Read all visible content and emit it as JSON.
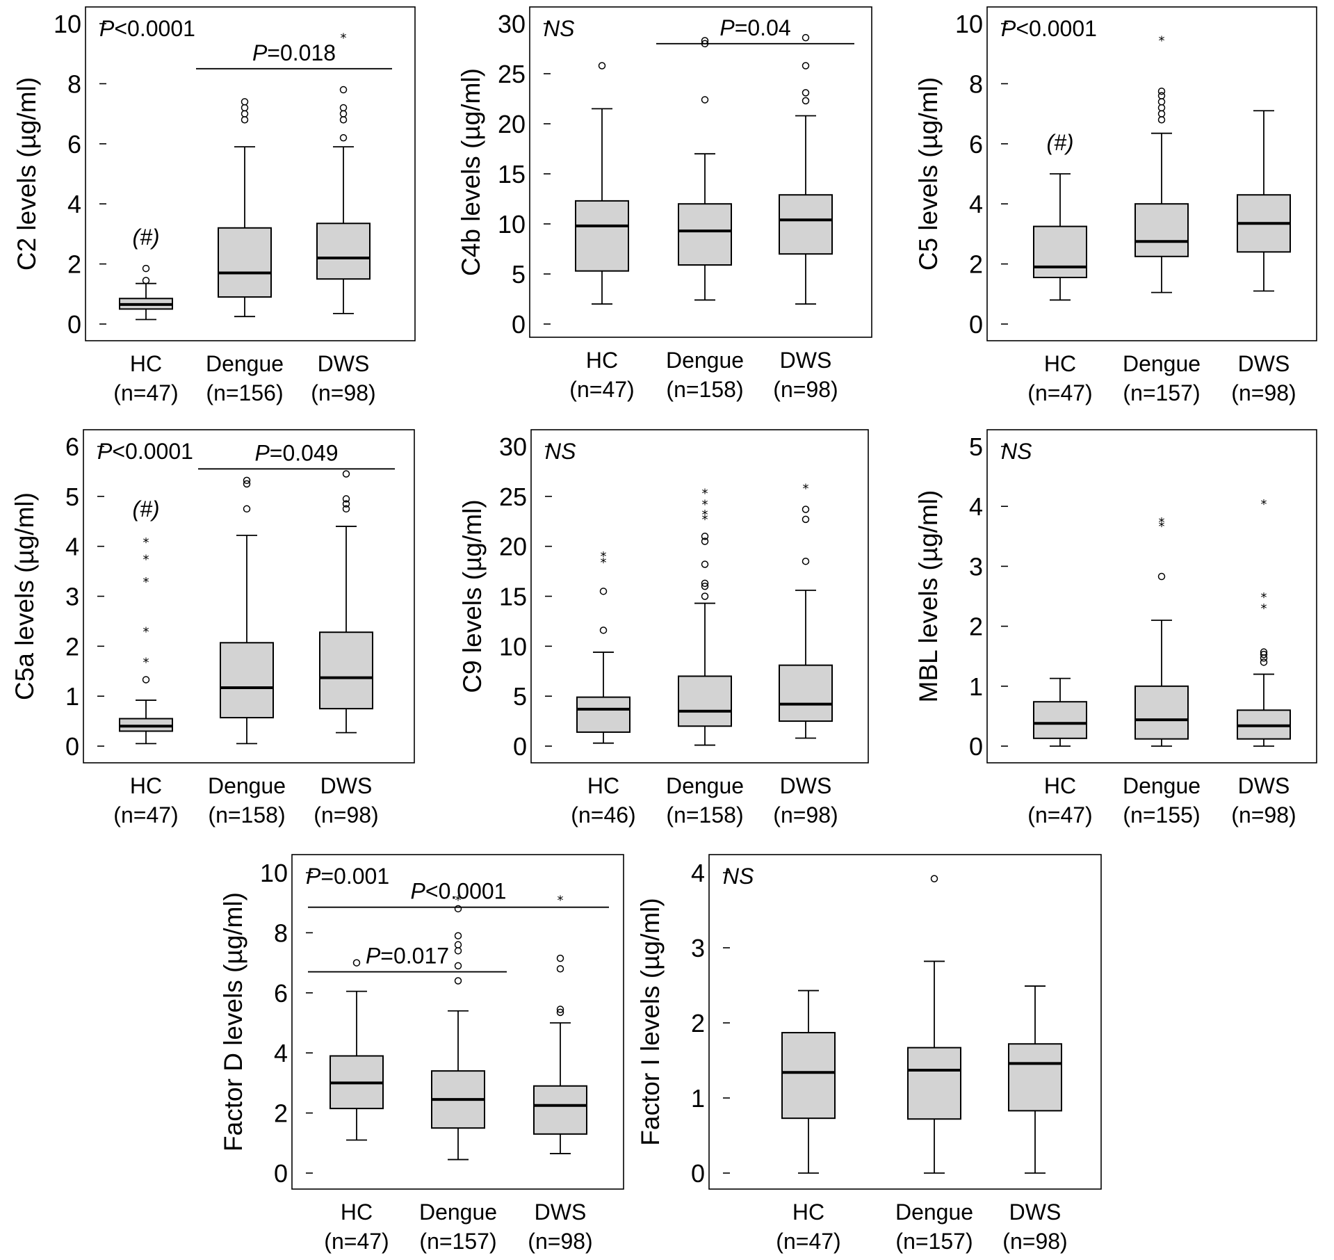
{
  "chart_data": [
    {
      "type": "box",
      "ylabel": "C2 levels (µg/ml)",
      "ylim": [
        0,
        10
      ],
      "yticks": [
        0,
        2,
        4,
        6,
        8,
        10
      ],
      "overall_p": {
        "label": "P",
        "text": "<0.0001"
      },
      "categories": [
        "HC",
        "Dengue",
        "DWS"
      ],
      "ns": [
        "(n=47)",
        "(n=156)",
        "(n=98)"
      ],
      "boxes": [
        {
          "whisker_low": 0.15,
          "q1": 0.5,
          "median": 0.65,
          "q3": 0.85,
          "whisker_high": 1.35,
          "outliers_o": [
            1.45,
            1.85
          ],
          "outliers_star": [],
          "mark": "(#)"
        },
        {
          "whisker_low": 0.25,
          "q1": 0.9,
          "median": 1.7,
          "q3": 3.2,
          "whisker_high": 5.9,
          "outliers_o": [
            6.8,
            7.0,
            7.2,
            7.4
          ],
          "outliers_star": [],
          "mark": ""
        },
        {
          "whisker_low": 0.35,
          "q1": 1.5,
          "median": 2.2,
          "q3": 3.35,
          "whisker_high": 5.9,
          "outliers_o": [
            6.2,
            6.8,
            7.0,
            7.2,
            7.8
          ],
          "outliers_star": [
            9.6
          ],
          "mark": ""
        }
      ],
      "comparisons": [
        {
          "from": 1,
          "to": 2,
          "label": "P",
          "text": "=0.018",
          "y": 8.5
        }
      ]
    },
    {
      "type": "box",
      "ylabel": "C4b levels (µg/ml)",
      "ylim": [
        0,
        30
      ],
      "yticks": [
        0,
        5,
        10,
        15,
        20,
        25,
        30
      ],
      "ns_label": "NS",
      "categories": [
        "HC",
        "Dengue",
        "DWS"
      ],
      "ns": [
        "(n=47)",
        "(n=158)",
        "(n=98)"
      ],
      "boxes": [
        {
          "whisker_low": 2.0,
          "q1": 5.3,
          "median": 9.8,
          "q3": 12.3,
          "whisker_high": 21.5,
          "outliers_o": [
            25.8
          ],
          "outliers_star": [],
          "mark": ""
        },
        {
          "whisker_low": 2.4,
          "q1": 5.9,
          "median": 9.3,
          "q3": 12.0,
          "whisker_high": 17.0,
          "outliers_o": [
            22.4,
            28.0,
            28.3
          ],
          "outliers_star": [],
          "mark": ""
        },
        {
          "whisker_low": 2.0,
          "q1": 7.0,
          "median": 10.4,
          "q3": 12.9,
          "whisker_high": 20.8,
          "outliers_o": [
            22.3,
            23.1,
            25.8,
            28.6
          ],
          "outliers_star": [],
          "mark": ""
        }
      ],
      "comparisons": [
        {
          "from": 1,
          "to": 2,
          "label": "P",
          "text": "=0.04",
          "y": 28.0
        }
      ]
    },
    {
      "type": "box",
      "ylabel": "C5 levels (µg/ml)",
      "ylim": [
        0,
        10
      ],
      "yticks": [
        0,
        2,
        4,
        6,
        8,
        10
      ],
      "overall_p": {
        "label": "P",
        "text": "<0.0001"
      },
      "categories": [
        "HC",
        "Dengue",
        "DWS"
      ],
      "ns": [
        "(n=47)",
        "(n=157)",
        "(n=98)"
      ],
      "boxes": [
        {
          "whisker_low": 0.8,
          "q1": 1.55,
          "median": 1.9,
          "q3": 3.25,
          "whisker_high": 5.0,
          "outliers_o": [],
          "outliers_star": [],
          "mark": "(#)"
        },
        {
          "whisker_low": 1.05,
          "q1": 2.25,
          "median": 2.75,
          "q3": 4.0,
          "whisker_high": 6.35,
          "outliers_o": [
            6.8,
            7.0,
            7.2,
            7.4,
            7.6,
            7.75
          ],
          "outliers_star": [
            9.5
          ],
          "mark": ""
        },
        {
          "whisker_low": 1.1,
          "q1": 2.4,
          "median": 3.35,
          "q3": 4.3,
          "whisker_high": 7.1,
          "outliers_o": [],
          "outliers_star": [],
          "mark": ""
        }
      ],
      "comparisons": []
    },
    {
      "type": "box",
      "ylabel": "C5a levels (µg/ml)",
      "ylim": [
        0,
        6
      ],
      "yticks": [
        0,
        1,
        2,
        3,
        4,
        5,
        6
      ],
      "overall_p": {
        "label": "P",
        "text": "<0.0001"
      },
      "categories": [
        "HC",
        "Dengue",
        "DWS"
      ],
      "ns": [
        "(n=47)",
        "(n=158)",
        "(n=98)"
      ],
      "boxes": [
        {
          "whisker_low": 0.05,
          "q1": 0.3,
          "median": 0.4,
          "q3": 0.55,
          "whisker_high": 0.92,
          "outliers_o": [
            1.33
          ],
          "outliers_star": [
            1.72,
            2.33,
            3.33,
            3.78,
            4.12
          ],
          "mark": "(#)"
        },
        {
          "whisker_low": 0.05,
          "q1": 0.57,
          "median": 1.17,
          "q3": 2.07,
          "whisker_high": 4.22,
          "outliers_o": [
            4.75,
            5.25,
            5.32
          ],
          "outliers_star": [],
          "mark": ""
        },
        {
          "whisker_low": 0.27,
          "q1": 0.75,
          "median": 1.37,
          "q3": 2.28,
          "whisker_high": 4.4,
          "outliers_o": [
            4.75,
            4.85,
            4.95,
            5.45
          ],
          "outliers_star": [],
          "mark": ""
        }
      ],
      "comparisons": [
        {
          "from": 1,
          "to": 2,
          "label": "P",
          "text": "=0.049",
          "y": 5.55
        }
      ]
    },
    {
      "type": "box",
      "ylabel": "C9 levels (µg/ml)",
      "ylim": [
        0,
        30
      ],
      "yticks": [
        0,
        5,
        10,
        15,
        20,
        25,
        30
      ],
      "ns_label": "NS",
      "categories": [
        "HC",
        "Dengue",
        "DWS"
      ],
      "ns": [
        "(n=46)",
        "(n=158)",
        "(n=98)"
      ],
      "boxes": [
        {
          "whisker_low": 0.3,
          "q1": 1.4,
          "median": 3.7,
          "q3": 4.9,
          "whisker_high": 9.4,
          "outliers_o": [
            11.6,
            15.5
          ],
          "outliers_star": [
            18.6,
            19.2
          ],
          "mark": ""
        },
        {
          "whisker_low": 0.1,
          "q1": 2.0,
          "median": 3.5,
          "q3": 7.0,
          "whisker_high": 14.3,
          "outliers_o": [
            15.0,
            16.0,
            16.3,
            18.2,
            20.5,
            21.0
          ],
          "outliers_star": [
            22.9,
            23.4,
            24.4,
            25.5
          ],
          "mark": ""
        },
        {
          "whisker_low": 0.8,
          "q1": 2.5,
          "median": 4.2,
          "q3": 8.1,
          "whisker_high": 15.6,
          "outliers_o": [
            18.5,
            22.7,
            23.7
          ],
          "outliers_star": [
            26.0
          ],
          "mark": ""
        }
      ],
      "comparisons": []
    },
    {
      "type": "box",
      "ylabel": "MBL levels (µg/ml)",
      "ylim": [
        0,
        5
      ],
      "yticks": [
        0,
        1,
        2,
        3,
        4,
        5
      ],
      "ns_label": "NS",
      "categories": [
        "HC",
        "Dengue",
        "DWS"
      ],
      "ns": [
        "(n=47)",
        "(n=155)",
        "(n=98)"
      ],
      "boxes": [
        {
          "whisker_low": 0.0,
          "q1": 0.13,
          "median": 0.38,
          "q3": 0.74,
          "whisker_high": 1.13,
          "outliers_o": [],
          "outliers_star": [],
          "mark": ""
        },
        {
          "whisker_low": 0.0,
          "q1": 0.12,
          "median": 0.44,
          "q3": 1.0,
          "whisker_high": 2.1,
          "outliers_o": [
            2.83
          ],
          "outliers_star": [
            3.7,
            3.77
          ],
          "mark": ""
        },
        {
          "whisker_low": 0.0,
          "q1": 0.12,
          "median": 0.34,
          "q3": 0.6,
          "whisker_high": 1.2,
          "outliers_o": [
            1.4,
            1.47,
            1.53,
            1.57
          ],
          "outliers_star": [
            2.33,
            2.52,
            4.07
          ],
          "mark": ""
        }
      ],
      "comparisons": []
    },
    {
      "type": "box",
      "ylabel": "Factor D levels (µg/ml)",
      "ylim": [
        0,
        10
      ],
      "yticks": [
        0,
        2,
        4,
        6,
        8,
        10
      ],
      "overall_p": {
        "label": "P",
        "text": "=0.001"
      },
      "categories": [
        "HC",
        "Dengue",
        "DWS"
      ],
      "ns": [
        "(n=47)",
        "(n=157)",
        "(n=98)"
      ],
      "boxes": [
        {
          "whisker_low": 1.1,
          "q1": 2.15,
          "median": 3.0,
          "q3": 3.9,
          "whisker_high": 6.05,
          "outliers_o": [
            7.0
          ],
          "outliers_star": [],
          "mark": ""
        },
        {
          "whisker_low": 0.45,
          "q1": 1.5,
          "median": 2.45,
          "q3": 3.4,
          "whisker_high": 5.4,
          "outliers_o": [
            6.4,
            6.9,
            7.4,
            7.6,
            7.9,
            8.8
          ],
          "outliers_star": [
            9.15
          ],
          "mark": ""
        },
        {
          "whisker_low": 0.65,
          "q1": 1.3,
          "median": 2.25,
          "q3": 2.9,
          "whisker_high": 5.0,
          "outliers_o": [
            5.35,
            5.45,
            6.8,
            7.15
          ],
          "outliers_star": [
            9.15
          ],
          "mark": ""
        }
      ],
      "comparisons": [
        {
          "from": 0,
          "to": 2,
          "label": "P",
          "text": "<0.0001",
          "y": 8.85
        },
        {
          "from": 0,
          "to": 1,
          "label": "P",
          "text": "=0.017",
          "y": 6.7
        }
      ]
    },
    {
      "type": "box",
      "ylabel": "Factor I levels (µg/ml)",
      "ylim": [
        0,
        4
      ],
      "yticks": [
        0,
        1,
        2,
        3,
        4
      ],
      "ns_label": "NS",
      "categories": [
        "HC",
        "Dengue",
        "DWS"
      ],
      "ns": [
        "(n=47)",
        "(n=157)",
        "(n=98)"
      ],
      "boxes": [
        {
          "whisker_low": 0.0,
          "q1": 0.73,
          "median": 1.34,
          "q3": 1.87,
          "whisker_high": 2.43,
          "outliers_o": [],
          "outliers_star": [],
          "mark": ""
        },
        {
          "whisker_low": 0.0,
          "q1": 0.72,
          "median": 1.37,
          "q3": 1.67,
          "whisker_high": 2.82,
          "outliers_o": [
            3.92
          ],
          "outliers_star": [],
          "mark": ""
        },
        {
          "whisker_low": 0.0,
          "q1": 0.83,
          "median": 1.46,
          "q3": 1.72,
          "whisker_high": 2.49,
          "outliers_o": [],
          "outliers_star": [],
          "mark": ""
        }
      ],
      "comparisons": []
    }
  ]
}
